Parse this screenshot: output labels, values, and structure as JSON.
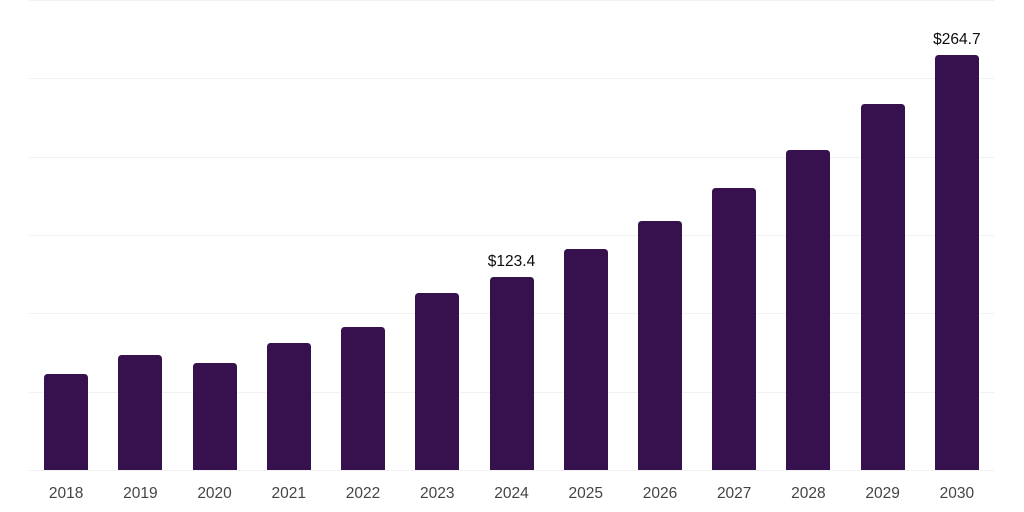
{
  "chart_data": {
    "type": "bar",
    "title": "",
    "xlabel": "",
    "ylabel": "",
    "categories": [
      "2018",
      "2019",
      "2020",
      "2021",
      "2022",
      "2023",
      "2024",
      "2025",
      "2026",
      "2027",
      "2028",
      "2029",
      "2030"
    ],
    "values": [
      61.4,
      73.6,
      68.2,
      81.3,
      91.5,
      113.3,
      123.4,
      140.8,
      158.7,
      179.9,
      204.2,
      233.6,
      264.7
    ],
    "bar_labels": [
      "",
      "",
      "",
      "",
      "",
      "",
      "$123.4",
      "",
      "",
      "",
      "",
      "",
      "$264.7"
    ],
    "ylim": [
      0,
      300
    ],
    "gridline_step": 50,
    "grid": true,
    "legend": "none",
    "colors": {
      "bar": "#36114E",
      "gridline": "#f1f1f1",
      "axis_line": "#2e2e2e",
      "tick_label": "#444444",
      "data_label": "#0d0d0d",
      "background": "#ffffff"
    }
  }
}
